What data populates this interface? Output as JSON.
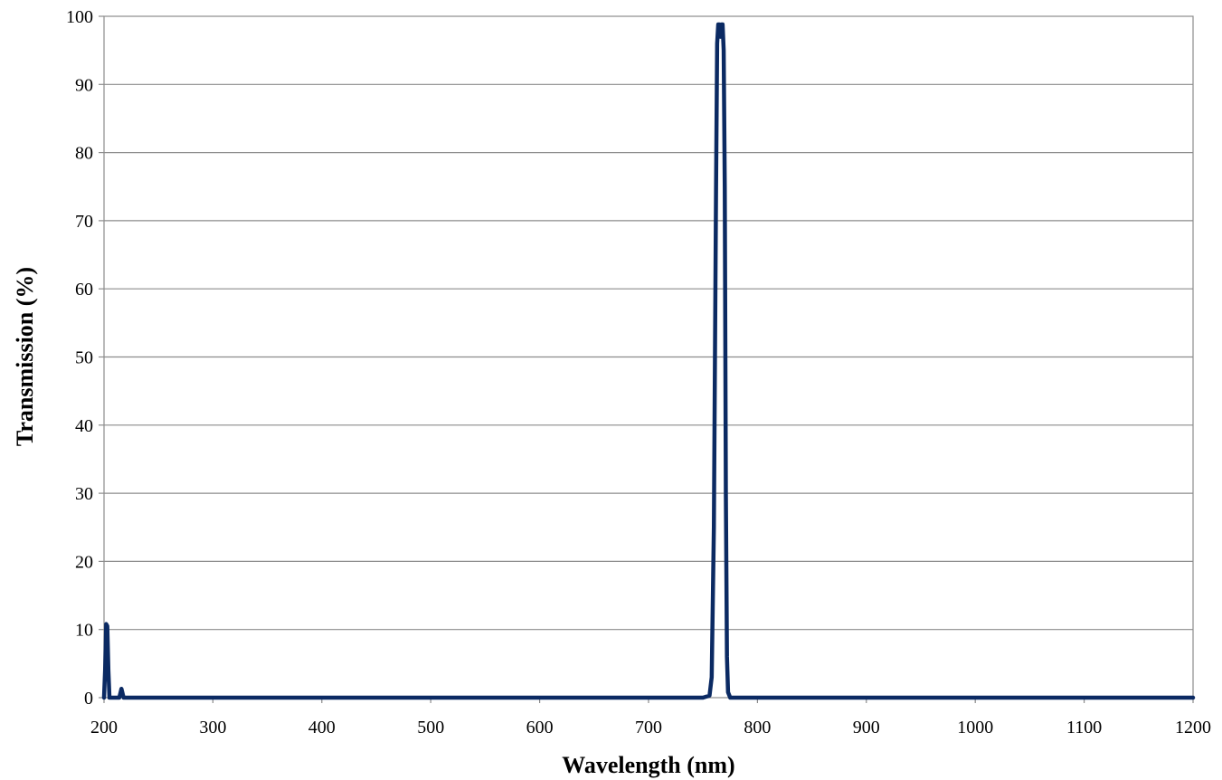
{
  "chart_data": {
    "type": "line",
    "title": "",
    "xlabel": "Wavelength (nm)",
    "ylabel": "Transmission (%)",
    "xlim": [
      200,
      1200
    ],
    "ylim": [
      0,
      100
    ],
    "x_ticks": [
      200,
      300,
      400,
      500,
      600,
      700,
      800,
      900,
      1000,
      1100,
      1200
    ],
    "y_ticks": [
      0,
      10,
      20,
      30,
      40,
      50,
      60,
      70,
      80,
      90,
      100
    ],
    "grid": "horizontal",
    "legend": "none",
    "line_color": "#0b2a63",
    "series": [
      {
        "points": [
          [
            200,
            0
          ],
          [
            201,
            4
          ],
          [
            202,
            10.8
          ],
          [
            203,
            10.5
          ],
          [
            204,
            4
          ],
          [
            205,
            0
          ],
          [
            210,
            0
          ],
          [
            214,
            0
          ],
          [
            216,
            1.3
          ],
          [
            218,
            0
          ],
          [
            300,
            0
          ],
          [
            400,
            0
          ],
          [
            500,
            0
          ],
          [
            600,
            0
          ],
          [
            700,
            0
          ],
          [
            750,
            0
          ],
          [
            756,
            0.3
          ],
          [
            758,
            3
          ],
          [
            760,
            25
          ],
          [
            762,
            75
          ],
          [
            763,
            96
          ],
          [
            764,
            98.8
          ],
          [
            765,
            98.8
          ],
          [
            766,
            97
          ],
          [
            767,
            98.8
          ],
          [
            768,
            98.8
          ],
          [
            769,
            95
          ],
          [
            770,
            75
          ],
          [
            771,
            30
          ],
          [
            772,
            6
          ],
          [
            773,
            0.8
          ],
          [
            775,
            0
          ],
          [
            800,
            0
          ],
          [
            900,
            0
          ],
          [
            1000,
            0
          ],
          [
            1100,
            0
          ],
          [
            1200,
            0
          ]
        ]
      }
    ]
  }
}
